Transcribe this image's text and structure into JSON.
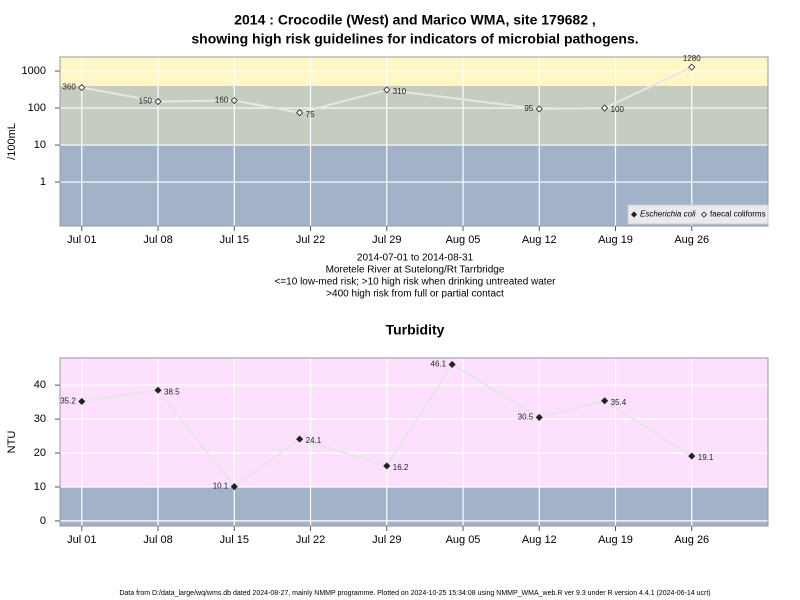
{
  "chart_data": [
    {
      "type": "line",
      "title": [
        "2014 : Crocodile (West) and Marico WMA, site 179682 ,",
        "showing high risk guidelines for indicators of microbial pathogens."
      ],
      "subtitle": [
        "2014-07-01 to 2014-08-31",
        "Moretele River at Sutelong/Rt Tarrbridge",
        "<=10 low-med risk; >10 high risk when drinking untreated water",
        ">400 high risk from full or partial contact"
      ],
      "y_label": "/100mL",
      "log_y": true,
      "x": [
        "2014-07-01",
        "2014-07-08",
        "2014-07-15",
        "2014-07-21",
        "2014-07-29",
        "2014-08-12",
        "2014-08-18",
        "2014-08-26"
      ],
      "series": [
        {
          "name": "Escherichia coli",
          "marker": "filled",
          "color": "#222222",
          "values": [
            null,
            null,
            null,
            null,
            null,
            null,
            null,
            null
          ]
        },
        {
          "name": "faecal coliforms",
          "marker": "open",
          "color": "#222222",
          "line_color": "#e6e6e6",
          "values": [
            360,
            150,
            160,
            75,
            310,
            95,
            100,
            1280
          ]
        }
      ],
      "xlim": [
        "2014-06-29",
        "2014-09-02"
      ],
      "xticks": [
        {
          "value": "2014-07-01",
          "label": "Jul 01"
        },
        {
          "value": "2014-07-08",
          "label": "Jul 08"
        },
        {
          "value": "2014-07-15",
          "label": "Jul 15"
        },
        {
          "value": "2014-07-22",
          "label": "Jul 22"
        },
        {
          "value": "2014-07-29",
          "label": "Jul 29"
        },
        {
          "value": "2014-08-05",
          "label": "Aug 05"
        },
        {
          "value": "2014-08-12",
          "label": "Aug 12"
        },
        {
          "value": "2014-08-19",
          "label": "Aug 19"
        },
        {
          "value": "2014-08-26",
          "label": "Aug 26"
        }
      ],
      "ylim": [
        0.065,
        2400
      ],
      "yticks": [
        1,
        10,
        100,
        1000
      ],
      "bands": [
        {
          "below": 10,
          "color": "#a2b2c9"
        },
        {
          "from": 10,
          "to": 400,
          "color": "#c5cdc1"
        },
        {
          "above": 400,
          "color": "#fff8c6"
        }
      ],
      "grid": true,
      "legend": "bottom-right"
    },
    {
      "type": "line",
      "title": "Turbidity",
      "y_label": "NTU",
      "log_y": false,
      "x": [
        "2014-07-01",
        "2014-07-08",
        "2014-07-15",
        "2014-07-21",
        "2014-07-29",
        "2014-08-04",
        "2014-08-12",
        "2014-08-18",
        "2014-08-26"
      ],
      "series": [
        {
          "name": "Turbidity",
          "marker": "filled",
          "color": "#222222",
          "line_color": "#e6e6e6",
          "values": [
            35.2,
            38.5,
            10.1,
            24.1,
            16.2,
            46.1,
            30.5,
            35.4,
            19.1
          ]
        }
      ],
      "xlim": [
        "2014-06-29",
        "2014-09-02"
      ],
      "xticks": [
        {
          "value": "2014-07-01",
          "label": "Jul 01"
        },
        {
          "value": "2014-07-08",
          "label": "Jul 08"
        },
        {
          "value": "2014-07-15",
          "label": "Jul 15"
        },
        {
          "value": "2014-07-22",
          "label": "Jul 22"
        },
        {
          "value": "2014-07-29",
          "label": "Jul 29"
        },
        {
          "value": "2014-08-05",
          "label": "Aug 05"
        },
        {
          "value": "2014-08-12",
          "label": "Aug 12"
        },
        {
          "value": "2014-08-19",
          "label": "Aug 19"
        },
        {
          "value": "2014-08-26",
          "label": "Aug 26"
        }
      ],
      "ylim": [
        -1.5,
        48
      ],
      "yticks": [
        0,
        10,
        20,
        30,
        40
      ],
      "bands": [
        {
          "below": 10,
          "color": "#a2b2c9"
        },
        {
          "above": 10,
          "color": "#fde0fd"
        }
      ],
      "grid": true
    }
  ],
  "footer": "Data from D:/data_large/wq/wms.db dated 2024-08-27, mainly NMMP programme. Plotted on 2024-10-25 15:34:08 using NMMP_WMA_web.R ver 9.3 under R version 4.4.1 (2024-06-14 ucrt)"
}
